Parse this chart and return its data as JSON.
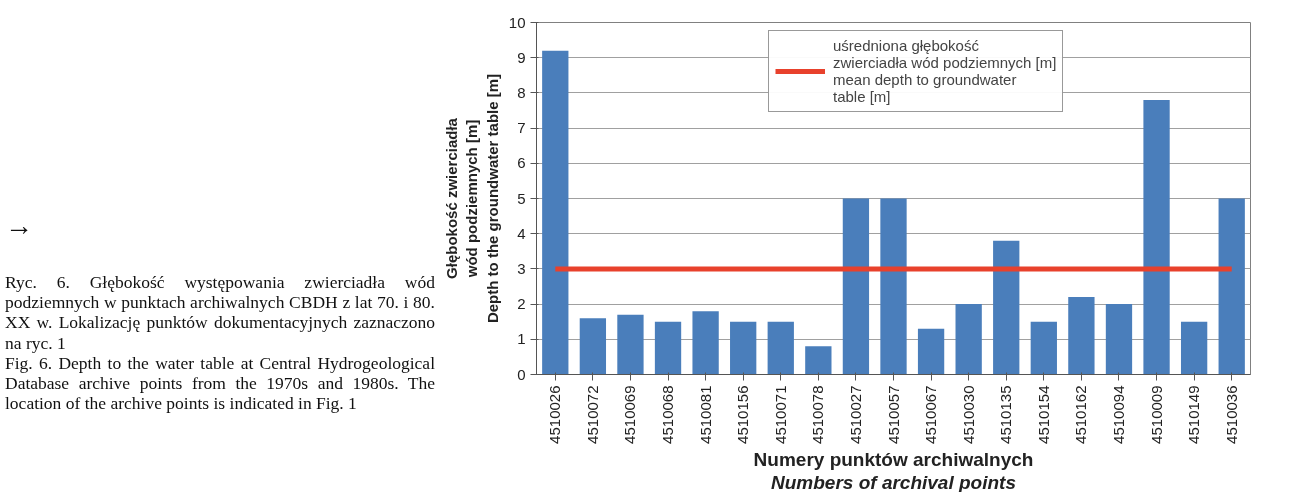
{
  "chart_data": {
    "type": "bar",
    "xlabel": "Numery punktów archiwalnych\nNumbers of archival points",
    "ylabel": "Głębokość zwierciadła\nwód podziemnych [m]\nDepth to the groundwater table [m]",
    "categories": [
      "4510026",
      "4510072",
      "4510069",
      "4510068",
      "4510081",
      "4510156",
      "4510071",
      "4510078",
      "4510027",
      "4510057",
      "4510067",
      "4510030",
      "4510135",
      "4510154",
      "4510162",
      "4510094",
      "4510009",
      "4510149",
      "4510036"
    ],
    "values": [
      9.2,
      1.6,
      1.7,
      1.5,
      1.8,
      1.5,
      1.5,
      0.8,
      5.0,
      5.0,
      1.3,
      2.0,
      3.8,
      1.5,
      2.2,
      2.0,
      7.8,
      1.5,
      5.0
    ],
    "color": "#4a7ebb",
    "ylim": [
      0,
      10
    ],
    "yticks": [
      0,
      1,
      2,
      3,
      4,
      5,
      6,
      7,
      8,
      9,
      10
    ],
    "grid": "y",
    "ref_lines": [
      {
        "axis": "y",
        "value": 3,
        "label": "uśredniona głębokość\nzwierciadła wód podziemnych [m]\nmean depth to groundwater\ntable [m]",
        "color": "#e8412c",
        "line_style": "solid"
      }
    ],
    "legend": "top right",
    "annotations": [
      "→",
      "Ryc. 6. Głębokość występowania zwierciadła wód podziemnych w punktach archiwalnych CBDH z lat 70. i 80. XX w. Lokalizację punktów dokumentacyjnych zaznaczono na ryc. 1",
      "Fig. 6. Depth to the water table at Central Hydrogeological Database archive points from the 1970s and 1980s. The location of the archive points is indicated in Fig. 1"
    ]
  }
}
